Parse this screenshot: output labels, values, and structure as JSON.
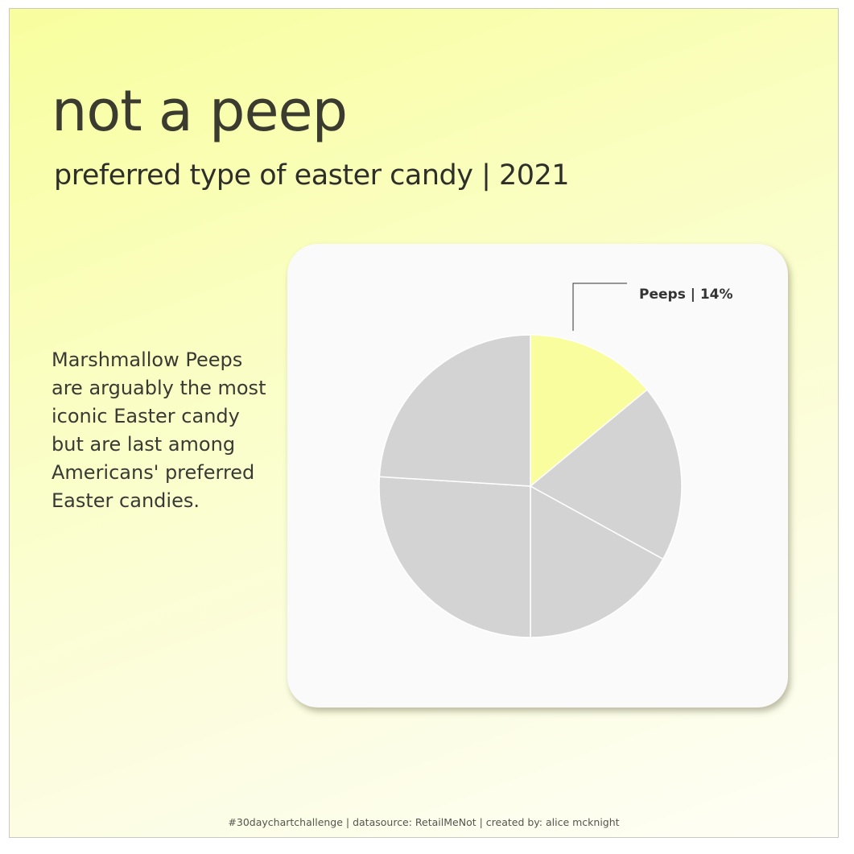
{
  "header": {
    "title": "not a peep",
    "subtitle": "preferred type of easter candy | 2021"
  },
  "description": "Marshmallow Peeps are arguably the most iconic Easter candy but are last among Americans' preferred Easter candies.",
  "footer": "#30daychartchallenge | datasource: RetailMeNot | created by: alice mcknight",
  "colors": {
    "highlight": "#f9fd9e",
    "other": "#d3d3d3",
    "card": "#fafafa",
    "divider": "#ffffff"
  },
  "chart_data": {
    "type": "pie",
    "title": "",
    "slices": [
      {
        "label": "Peeps",
        "value": 14,
        "highlight": true
      },
      {
        "label": "",
        "value": 19,
        "highlight": false
      },
      {
        "label": "",
        "value": 17,
        "highlight": false
      },
      {
        "label": "",
        "value": 26,
        "highlight": false
      },
      {
        "label": "",
        "value": 24,
        "highlight": false
      }
    ],
    "annotation": "Peeps | 14%",
    "start": "12 o'clock",
    "direction": "clockwise",
    "legend": "none"
  }
}
